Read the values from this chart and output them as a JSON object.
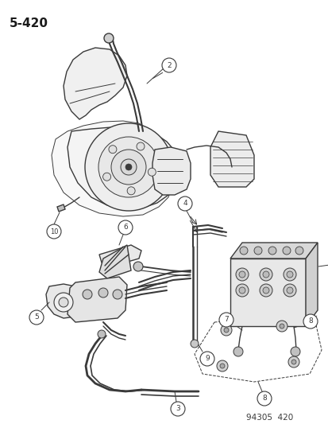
{
  "page_label": "5-420",
  "catalog_number": "94305  420",
  "background_color": "#ffffff",
  "line_color": "#3a3a3a",
  "figsize": [
    4.14,
    5.33
  ],
  "dpi": 100,
  "title_fontsize": 11,
  "catalog_fontsize": 7.5
}
